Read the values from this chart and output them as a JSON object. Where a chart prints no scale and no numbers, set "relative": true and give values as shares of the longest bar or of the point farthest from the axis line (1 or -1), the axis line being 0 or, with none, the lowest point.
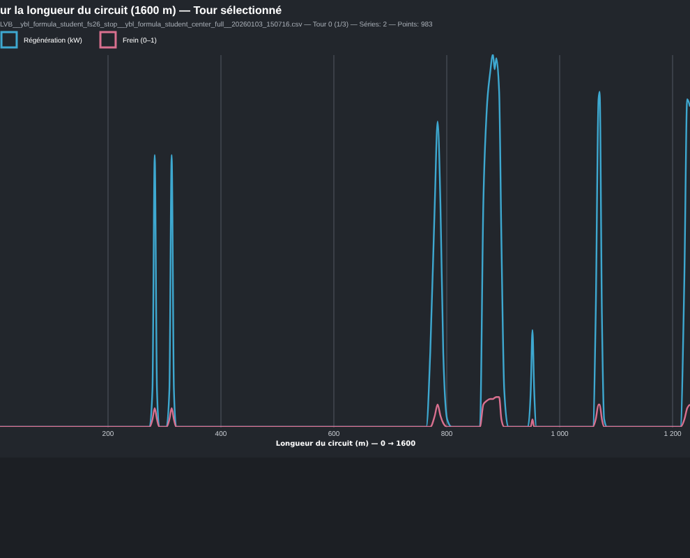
{
  "chart_data": {
    "type": "line",
    "title": "ur la longueur du circuit (1600 m) — Tour sélectionné",
    "subtitle": "LVB__ybl_formula_student_fs26_stop__ybl_formula_student_center_full__20260103_150716.csv — Tour 0 (1/3) — Séries: 2 — Points: 983",
    "xlabel": "Longueur du circuit (m) — 0 → 1600",
    "relative": true,
    "x": [
      10,
      275,
      280,
      284,
      288,
      292,
      305,
      310,
      314,
      318,
      322,
      765,
      772,
      780,
      785,
      790,
      795,
      802,
      810,
      860,
      866,
      872,
      878,
      883,
      886,
      889,
      894,
      898,
      903,
      910,
      945,
      950,
      953,
      956,
      960,
      1060,
      1065,
      1070,
      1072,
      1076,
      1080,
      1085,
      1215,
      1222,
      1227,
      1232
    ],
    "series": [
      {
        "name": "Régénération (kW)",
        "color": "#3ea8d0",
        "values": [
          0,
          0,
          0.1,
          0.73,
          0.1,
          0,
          0,
          0.1,
          0.73,
          0.1,
          0,
          0,
          0.2,
          0.6,
          0.82,
          0.6,
          0.2,
          0.02,
          0,
          0,
          0.6,
          0.85,
          0.95,
          1.0,
          0.96,
          0.99,
          0.9,
          0.5,
          0.1,
          0,
          0,
          0.1,
          0.26,
          0.1,
          0,
          0,
          0.3,
          0.88,
          0.9,
          0.3,
          0.02,
          0,
          0,
          0.4,
          0.88,
          0.86
        ]
      },
      {
        "name": "Frein (0–1)",
        "color": "#d9708f",
        "values": [
          0,
          0,
          0.02,
          0.05,
          0.02,
          0,
          0,
          0.02,
          0.05,
          0.02,
          0,
          0,
          0,
          0.03,
          0.06,
          0.03,
          0.01,
          0,
          0,
          0,
          0.06,
          0.07,
          0.075,
          0.075,
          0.078,
          0.08,
          0.08,
          0.02,
          0,
          0,
          0,
          0,
          0.02,
          0,
          0,
          0,
          0.02,
          0.06,
          0.06,
          0.02,
          0,
          0,
          0,
          0.02,
          0.05,
          0.06
        ]
      }
    ],
    "xlim": [
      10,
      1232
    ],
    "xticks": [
      200,
      400,
      600,
      800,
      1000,
      1200
    ],
    "grid": "x",
    "legend": "top"
  }
}
